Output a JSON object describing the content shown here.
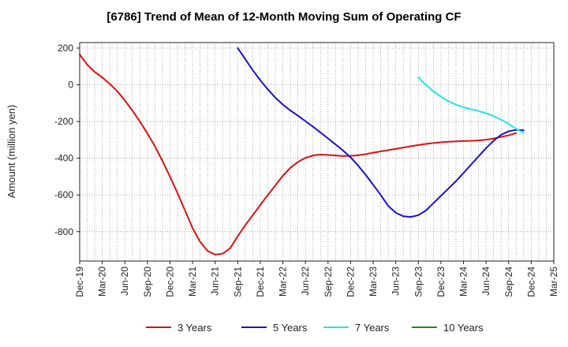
{
  "chart_data": {
    "type": "line",
    "title": "[6786]  Trend of Mean of 12-Month Moving Sum of Operating CF",
    "xlabel": "",
    "ylabel": "Amount (million yen)",
    "ylim": [
      -960,
      230
    ],
    "y_ticks": [
      200,
      0,
      -200,
      -400,
      -600,
      -800
    ],
    "y_tick_labels": [
      "200",
      "0",
      "-200",
      "-400",
      "-600",
      "-800"
    ],
    "x_tick_labels": [
      "Dec-19",
      "Mar-20",
      "Jun-20",
      "Sep-20",
      "Dec-20",
      "Mar-21",
      "Jun-21",
      "Sep-21",
      "Dec-21",
      "Mar-22",
      "Jun-22",
      "Sep-22",
      "Dec-22",
      "Mar-23",
      "Jun-23",
      "Sep-23",
      "Dec-23",
      "Mar-24",
      "Jun-24",
      "Sep-24",
      "Dec-24",
      "Mar-25"
    ],
    "months_start": "Dec-19",
    "months_count": 64,
    "grid": true,
    "legend_position": "bottom",
    "series": [
      {
        "name": "3 Years",
        "color": "#dd1111",
        "start_month_index": 0,
        "values": [
          165,
          110,
          70,
          40,
          5,
          -35,
          -85,
          -140,
          -200,
          -265,
          -335,
          -415,
          -500,
          -590,
          -685,
          -780,
          -855,
          -905,
          -925,
          -920,
          -890,
          -825,
          -765,
          -710,
          -655,
          -600,
          -548,
          -495,
          -452,
          -420,
          -398,
          -385,
          -380,
          -382,
          -385,
          -388,
          -387,
          -384,
          -378,
          -370,
          -363,
          -356,
          -349,
          -342,
          -335,
          -328,
          -322,
          -317,
          -313,
          -310,
          -308,
          -306,
          -305,
          -303,
          -299,
          -293,
          -284,
          -275,
          -263
        ]
      },
      {
        "name": "5 Years",
        "color": "#1515c8",
        "start_month_index": 21,
        "values": [
          200,
          140,
          80,
          25,
          -25,
          -70,
          -108,
          -140,
          -168,
          -198,
          -228,
          -260,
          -292,
          -325,
          -358,
          -395,
          -440,
          -490,
          -545,
          -600,
          -660,
          -697,
          -716,
          -720,
          -710,
          -685,
          -645,
          -605,
          -565,
          -525,
          -480,
          -435,
          -390,
          -345,
          -305,
          -272,
          -253,
          -245,
          -248
        ]
      },
      {
        "name": "7 Years",
        "color": "#22e5e5",
        "start_month_index": 45,
        "values": [
          40,
          0,
          -35,
          -65,
          -90,
          -108,
          -122,
          -133,
          -143,
          -155,
          -170,
          -190,
          -213,
          -240,
          -262
        ]
      },
      {
        "name": "10 Years",
        "color": "#228b22",
        "start_month_index": 0,
        "values": []
      }
    ]
  }
}
